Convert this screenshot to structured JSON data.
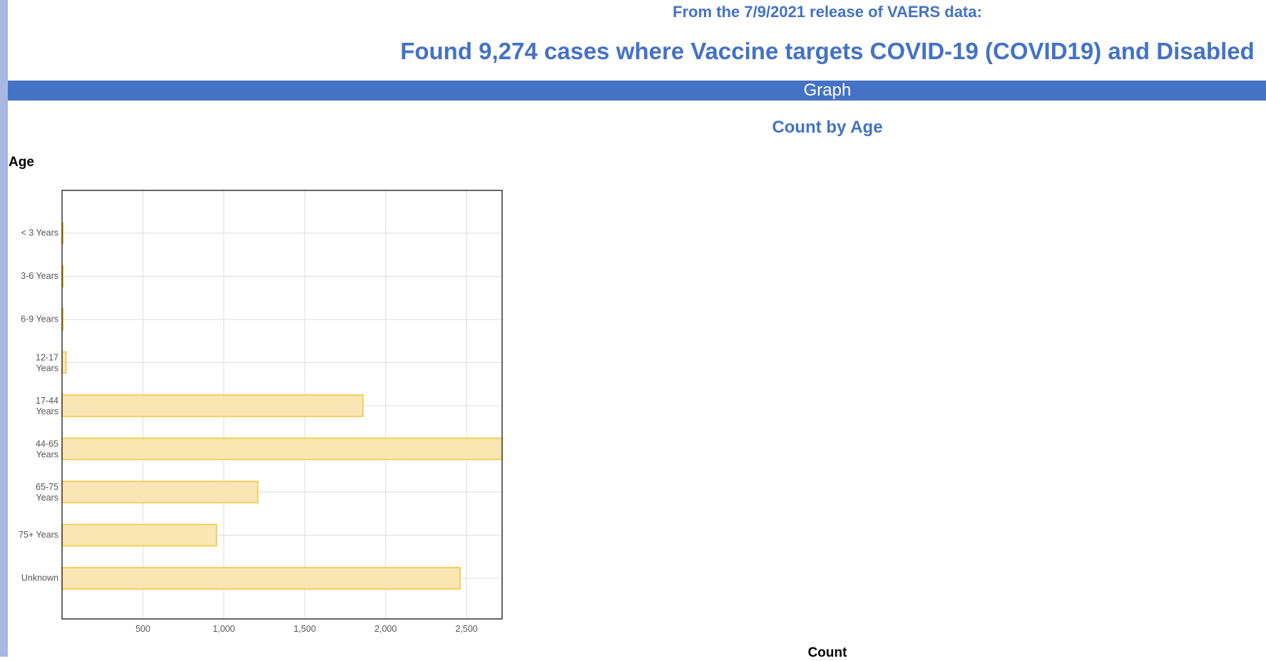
{
  "header": {
    "release": "From the 7/9/2021 release of VAERS data:",
    "found": "Found 9,274 cases where Vaccine targets COVID-19 (COVID19) and Disabled"
  },
  "section": {
    "label": "Graph"
  },
  "colors": {
    "accent": "#4472c4",
    "left_bar": "#a9b8e2",
    "bar_fill": "#f9e6b3",
    "bar_stroke": "#f2c43d"
  },
  "chart_data": {
    "type": "bar",
    "orientation": "horizontal",
    "title": "Count by Age",
    "ylabel": "Age",
    "xlabel": "Count",
    "categories": [
      "< 3 Years",
      "3-6 Years",
      "6-9 Years",
      "12-17 Years",
      "17-44 Years",
      "44-65 Years",
      "65-75 Years",
      "75+ Years",
      "Unknown"
    ],
    "values": [
      4,
      4,
      4,
      25,
      1860,
      2720,
      1210,
      955,
      2460
    ],
    "xticks": [
      500,
      1000,
      1500,
      2000,
      2500
    ],
    "xtick_labels": [
      "500",
      "1,000",
      "1,500",
      "2,000",
      "2,500"
    ],
    "xlim": [
      0,
      2720
    ],
    "grid": true
  }
}
